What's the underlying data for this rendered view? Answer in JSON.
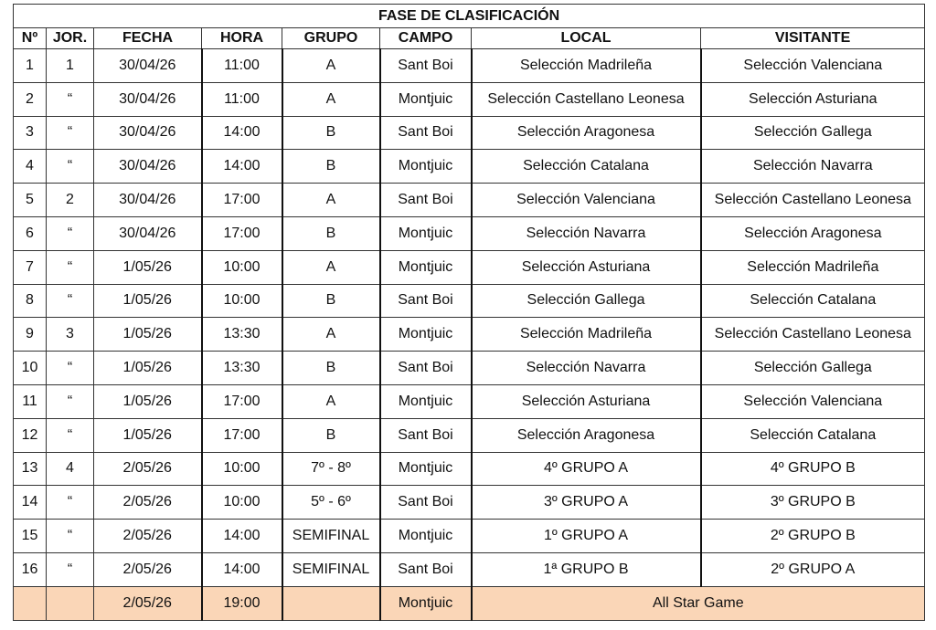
{
  "title": "FASE DE CLASIFICACIÓN",
  "columns": [
    "Nº",
    "JOR.",
    "FECHA",
    "HORA",
    "GRUPO",
    "CAMPO",
    "LOCAL",
    "VISITANTE"
  ],
  "rows": [
    [
      "1",
      "1",
      "30/04/26",
      "11:00",
      "A",
      "Sant Boi",
      "Selección Madrileña",
      "Selección Valenciana"
    ],
    [
      "2",
      "“",
      "30/04/26",
      "11:00",
      "A",
      "Montjuic",
      "Selección Castellano Leonesa",
      "Selección Asturiana"
    ],
    [
      "3",
      "“",
      "30/04/26",
      "14:00",
      "B",
      "Sant Boi",
      "Selección Aragonesa",
      "Selección Gallega"
    ],
    [
      "4",
      "“",
      "30/04/26",
      "14:00",
      "B",
      "Montjuic",
      "Selección Catalana",
      "Selección Navarra"
    ],
    [
      "5",
      "2",
      "30/04/26",
      "17:00",
      "A",
      "Sant Boi",
      "Selección Valenciana",
      "Selección Castellano Leonesa"
    ],
    [
      "6",
      "“",
      "30/04/26",
      "17:00",
      "B",
      "Montjuic",
      "Selección Navarra",
      "Selección Aragonesa"
    ],
    [
      "7",
      "“",
      "1/05/26",
      "10:00",
      "A",
      "Montjuic",
      "Selección Asturiana",
      "Selección Madrileña"
    ],
    [
      "8",
      "“",
      "1/05/26",
      "10:00",
      "B",
      "Sant Boi",
      "Selección Gallega",
      "Selección Catalana"
    ],
    [
      "9",
      "3",
      "1/05/26",
      "13:30",
      "A",
      "Montjuic",
      "Selección Madrileña",
      "Selección Castellano Leonesa"
    ],
    [
      "10",
      "“",
      "1/05/26",
      "13:30",
      "B",
      "Sant Boi",
      "Selección Navarra",
      "Selección Gallega"
    ],
    [
      "11",
      "“",
      "1/05/26",
      "17:00",
      "A",
      "Montjuic",
      "Selección Asturiana",
      "Selección Valenciana"
    ],
    [
      "12",
      "“",
      "1/05/26",
      "17:00",
      "B",
      "Sant Boi",
      "Selección Aragonesa",
      "Selección Catalana"
    ],
    [
      "13",
      "4",
      "2/05/26",
      "10:00",
      "7º - 8º",
      "Montjuic",
      "4º GRUPO A",
      "4º GRUPO B"
    ],
    [
      "14",
      "“",
      "2/05/26",
      "10:00",
      "5º - 6º",
      "Sant Boi",
      "3º GRUPO A",
      "3º GRUPO B"
    ],
    [
      "15",
      "“",
      "2/05/26",
      "14:00",
      "SEMIFINAL",
      "Montjuic",
      "1º GRUPO A",
      "2º GRUPO B"
    ],
    [
      "16",
      "“",
      "2/05/26",
      "14:00",
      "SEMIFINAL",
      "Sant Boi",
      "1ª GRUPO B",
      "2º GRUPO A"
    ]
  ],
  "special_row": {
    "num": "",
    "jor": "",
    "fecha": "2/05/26",
    "hora": "19:00",
    "grupo": "",
    "campo": "Montjuic",
    "event": "All Star Game"
  },
  "colors": {
    "special_row_fill": "#fad6b7"
  }
}
